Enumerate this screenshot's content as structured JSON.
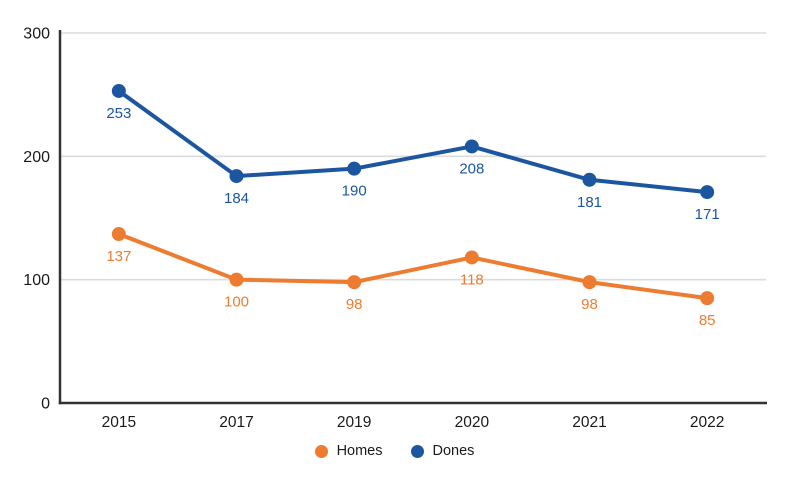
{
  "chart_data": {
    "type": "line",
    "categories": [
      "2015",
      "2017",
      "2019",
      "2020",
      "2021",
      "2022"
    ],
    "series": [
      {
        "name": "Homes",
        "color": "#ED7C30",
        "values": [
          137,
          100,
          98,
          118,
          98,
          85
        ]
      },
      {
        "name": "Dones",
        "color": "#1D56A0",
        "values": [
          253,
          184,
          190,
          208,
          181,
          171
        ]
      }
    ],
    "ylim": [
      0,
      300
    ],
    "yticks": [
      0,
      100,
      200,
      300
    ],
    "grid": true,
    "legend_position": "bottom",
    "data_labels": true
  },
  "style": {
    "axis_color": "#333333",
    "gridline_color": "#dcdcdc",
    "tick_label_color": "#1a1a1a"
  }
}
